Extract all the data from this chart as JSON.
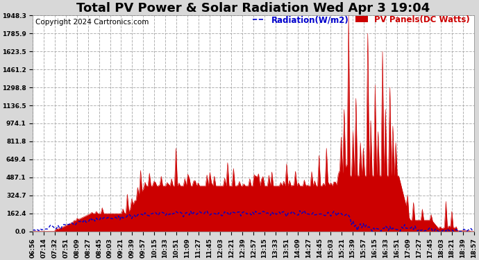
{
  "title": "Total PV Power & Solar Radiation Wed Apr 3 19:04",
  "copyright": "Copyright 2024 Cartronics.com",
  "legend_radiation": "Radiation(W/m2)",
  "legend_pv": "PV Panels(DC Watts)",
  "y_ticks": [
    0.0,
    162.4,
    324.7,
    487.1,
    649.4,
    811.8,
    974.1,
    1136.5,
    1298.8,
    1461.2,
    1623.5,
    1785.9,
    1948.3
  ],
  "x_tick_labels": [
    "06:56",
    "07:14",
    "07:32",
    "07:51",
    "08:09",
    "08:27",
    "08:45",
    "09:03",
    "09:21",
    "09:39",
    "09:57",
    "10:15",
    "10:33",
    "10:51",
    "11:09",
    "11:27",
    "11:45",
    "12:03",
    "12:21",
    "12:39",
    "12:57",
    "13:15",
    "13:33",
    "13:51",
    "14:09",
    "14:27",
    "14:45",
    "15:03",
    "15:21",
    "15:39",
    "15:57",
    "16:15",
    "16:33",
    "16:51",
    "17:09",
    "17:27",
    "17:45",
    "18:03",
    "18:21",
    "18:39",
    "18:57"
  ],
  "y_max": 1948.3,
  "background_color": "#d8d8d8",
  "plot_bg_color": "#ffffff",
  "grid_color": "#aaaaaa",
  "pv_color": "#cc0000",
  "radiation_color": "#0000cc",
  "title_color": "#000000",
  "copyright_color": "#000000",
  "title_fontsize": 13,
  "copyright_fontsize": 7.5,
  "tick_fontsize": 6.5,
  "legend_fontsize": 8.5
}
